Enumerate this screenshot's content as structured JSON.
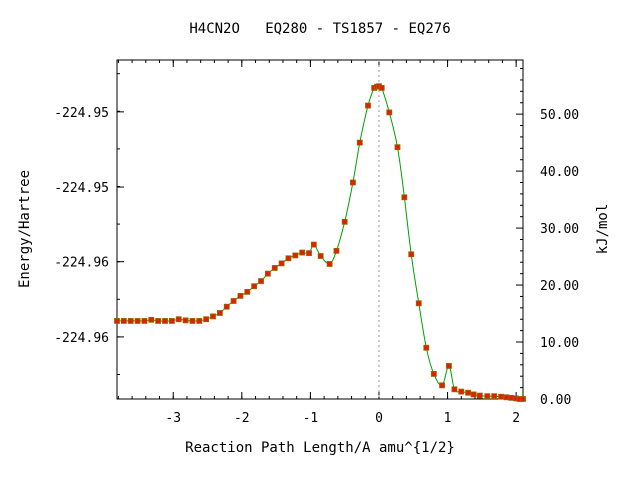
{
  "chart_data": {
    "type": "line",
    "title": "H4CN2O   EQ280 - TS1857 - EQ276",
    "xlabel": "Reaction Path Length/A amu^{1/2}",
    "ylabel_left": "Energy/Hartree",
    "ylabel_right": "kJ/mol",
    "xlim": [
      -3.82,
      2.1
    ],
    "ylim_right": [
      0,
      59.5
    ],
    "x_ticks": [
      -3,
      -2,
      -1,
      0,
      1,
      2
    ],
    "x_tick_labels": [
      "-3",
      "-2",
      "-1",
      "0",
      "1",
      "2"
    ],
    "left_ticks_kj": [
      50.4,
      37.2,
      24.1,
      10.9
    ],
    "left_tick_labels": [
      "-224.95",
      "-224.95",
      "-224.96",
      "-224.96"
    ],
    "right_ticks": [
      0,
      10,
      20,
      30,
      40,
      50
    ],
    "right_tick_labels": [
      "0.00",
      "10.00",
      "20.00",
      "30.00",
      "40.00",
      "50.00"
    ],
    "ts_marker_x": 0,
    "line_color": "#00a000",
    "marker_fill": "#dd2200",
    "marker_stroke": "#996600",
    "series": [
      {
        "x": [
          -3.82,
          -3.72,
          -3.62,
          -3.52,
          -3.42,
          -3.32,
          -3.22,
          -3.12,
          -3.02,
          -2.92,
          -2.82,
          -2.72,
          -2.62,
          -2.52,
          -2.42,
          -2.32,
          -2.22,
          -2.12,
          -2.02,
          -1.92,
          -1.82,
          -1.72,
          -1.62,
          -1.52,
          -1.42,
          -1.32,
          -1.22,
          -1.12,
          -1.02,
          -0.95,
          -0.85,
          -0.72,
          -0.62,
          -0.5,
          -0.38,
          -0.28,
          -0.16,
          -0.07,
          -0.03,
          0.0,
          0.04,
          0.15,
          0.27,
          0.37,
          0.47,
          0.58,
          0.69,
          0.8,
          0.92,
          1.02,
          1.1,
          1.2,
          1.3,
          1.38,
          1.47,
          1.58,
          1.68,
          1.78,
          1.86,
          1.93,
          2.0,
          2.05,
          2.1
        ],
        "y": [
          13.7,
          13.7,
          13.7,
          13.7,
          13.7,
          13.9,
          13.7,
          13.7,
          13.7,
          14.0,
          13.8,
          13.7,
          13.7,
          14.0,
          14.5,
          15.1,
          16.2,
          17.2,
          18.1,
          18.8,
          19.8,
          20.7,
          22.0,
          23.0,
          23.8,
          24.7,
          25.2,
          25.7,
          25.6,
          27.1,
          25.1,
          23.7,
          26.0,
          31.1,
          38.0,
          45.0,
          51.5,
          54.6,
          54.8,
          54.9,
          54.6,
          50.3,
          44.2,
          35.4,
          25.4,
          16.8,
          9.0,
          4.4,
          2.4,
          5.8,
          1.7,
          1.3,
          1.1,
          0.8,
          0.6,
          0.5,
          0.5,
          0.4,
          0.3,
          0.2,
          0.1,
          0.0,
          0.0
        ]
      }
    ]
  }
}
